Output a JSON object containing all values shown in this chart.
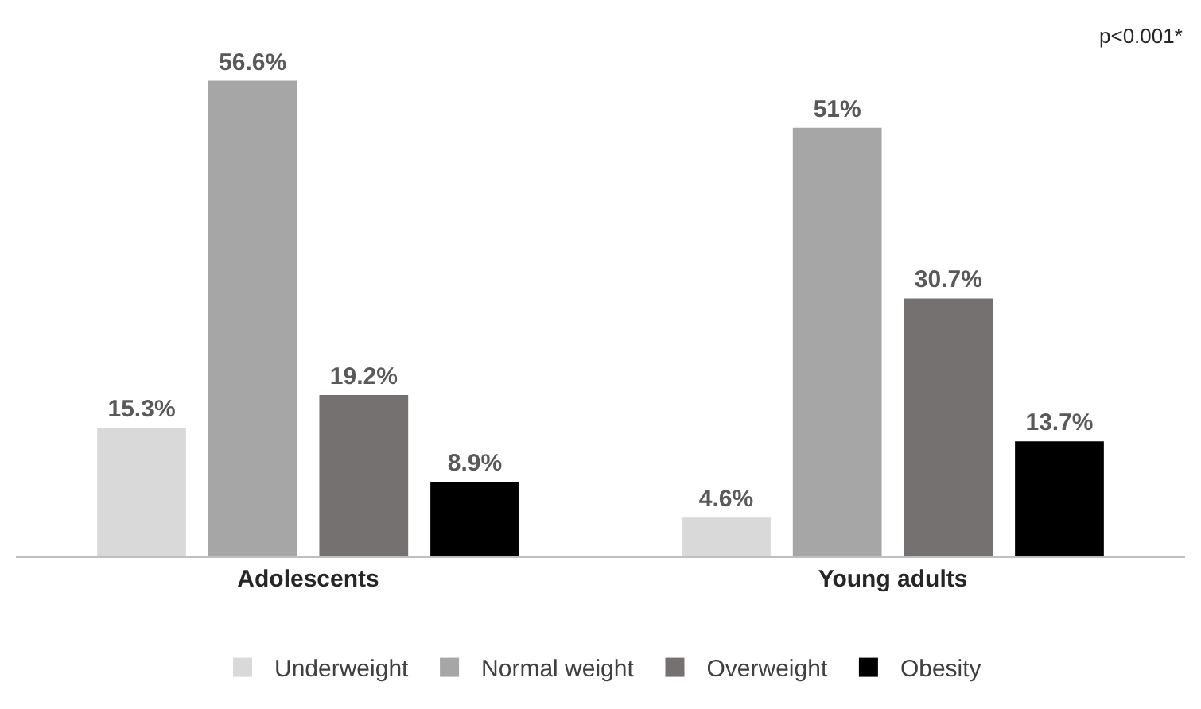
{
  "chart_data": {
    "type": "bar",
    "categories": [
      "Adolescents",
      "Young adults"
    ],
    "series": [
      {
        "name": "Underweight",
        "color": "#d9d9d9",
        "values": [
          15.3,
          4.6
        ],
        "value_labels": [
          "15.3%",
          "4.6%"
        ]
      },
      {
        "name": "Normal weight",
        "color": "#a6a6a6",
        "values": [
          56.6,
          51
        ],
        "value_labels": [
          "56.6%",
          "51%"
        ]
      },
      {
        "name": "Overweight",
        "color": "#767171",
        "values": [
          19.2,
          30.7
        ],
        "value_labels": [
          "19.2%",
          "30.7%"
        ]
      },
      {
        "name": "Obesity",
        "color": "#000000",
        "values": [
          8.9,
          13.7
        ],
        "value_labels": [
          "8.9%",
          "13.7%"
        ]
      }
    ],
    "annotations": [
      "p<0.001*"
    ],
    "legend": "bottom"
  }
}
